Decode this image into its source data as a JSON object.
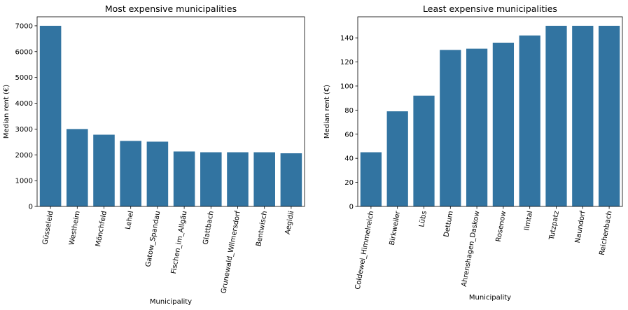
{
  "chart_data": [
    {
      "type": "bar",
      "title": "Most expensive municipalities",
      "xlabel": "Municipality",
      "ylabel": "Median rent (€)",
      "categories": [
        "Güsseleld",
        "Westheim",
        "Mönchfeld",
        "Lehel",
        "Gatow_Spandau",
        "Fischen_im_Allgäu",
        "Glattbach",
        "Grunewald_Wilmersdorf",
        "Bentwisch",
        "Aegidii"
      ],
      "values": [
        7000,
        3000,
        2780,
        2540,
        2510,
        2130,
        2100,
        2100,
        2100,
        2060
      ],
      "ylim": [
        0,
        7350
      ],
      "yticks": [
        0,
        1000,
        2000,
        3000,
        4000,
        5000,
        6000,
        7000
      ],
      "color": "#3274a1",
      "grid": false
    },
    {
      "type": "bar",
      "title": "Least expensive municipalities",
      "xlabel": "Municipality",
      "ylabel": "Median rent (€)",
      "categories": [
        "Coldewei_Himmelreich",
        "Birkweiler",
        "Lübs",
        "Dettum",
        "Ahrenshagen_Daskow",
        "Rosenow",
        "Ilmtal",
        "Tutzpatz",
        "Naundorf",
        "Reichenbach"
      ],
      "values": [
        45,
        79,
        92,
        130,
        131,
        136,
        142,
        150,
        150,
        150
      ],
      "ylim": [
        0,
        157.5
      ],
      "yticks": [
        0,
        20,
        40,
        60,
        80,
        100,
        120,
        140
      ],
      "color": "#3274a1",
      "grid": false
    }
  ]
}
